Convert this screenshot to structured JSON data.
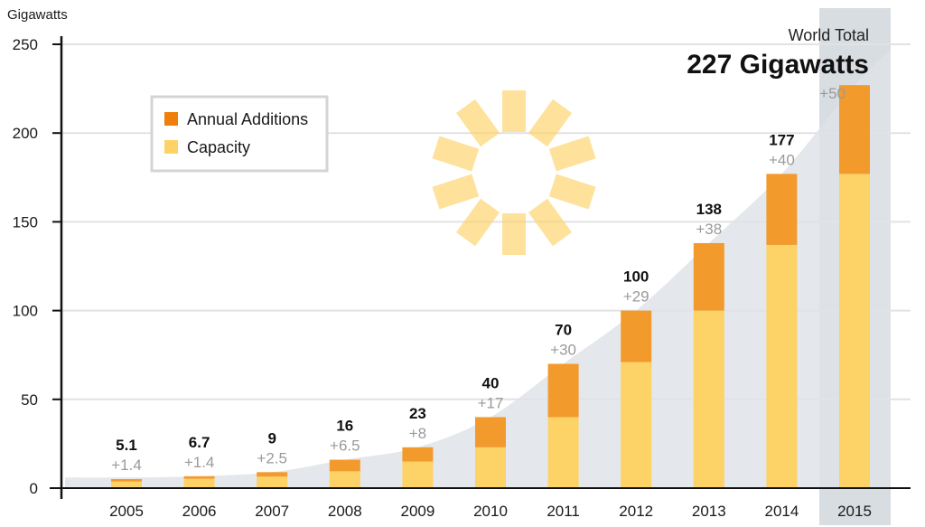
{
  "chart_data": {
    "type": "bar",
    "stacked": true,
    "ylabel": "Gigawatts",
    "ylim": [
      0,
      250
    ],
    "yticks": [
      0,
      50,
      100,
      150,
      200,
      250
    ],
    "grid": true,
    "categories": [
      "2005",
      "2006",
      "2007",
      "2008",
      "2009",
      "2010",
      "2011",
      "2012",
      "2013",
      "2014",
      "2015"
    ],
    "series": [
      {
        "name": "Capacity",
        "color": "#fdd266",
        "values": [
          3.7,
          5.3,
          6.5,
          9.5,
          15,
          23,
          40,
          71,
          100,
          137,
          177
        ]
      },
      {
        "name": "Annual Additions",
        "color": "#f39a2c",
        "values": [
          1.4,
          1.4,
          2.5,
          6.5,
          8,
          17,
          30,
          29,
          38,
          40,
          50
        ]
      }
    ],
    "total_labels": [
      "5.1",
      "6.7",
      "9",
      "16",
      "23",
      "40",
      "70",
      "100",
      "138",
      "177",
      ""
    ],
    "addition_labels": [
      "+1.4",
      "+1.4",
      "+2.5",
      "+6.5",
      "+8",
      "+17",
      "+30",
      "+29",
      "+38",
      "+40",
      "+50"
    ],
    "legend": [
      {
        "label": "Annual Additions",
        "color": "#f07f09"
      },
      {
        "label": "Capacity",
        "color": "#fdd266"
      }
    ],
    "legend_position": "top-left",
    "highlight": {
      "category": "2015",
      "subtitle": "World Total",
      "title": "227 Gigawatts"
    }
  }
}
